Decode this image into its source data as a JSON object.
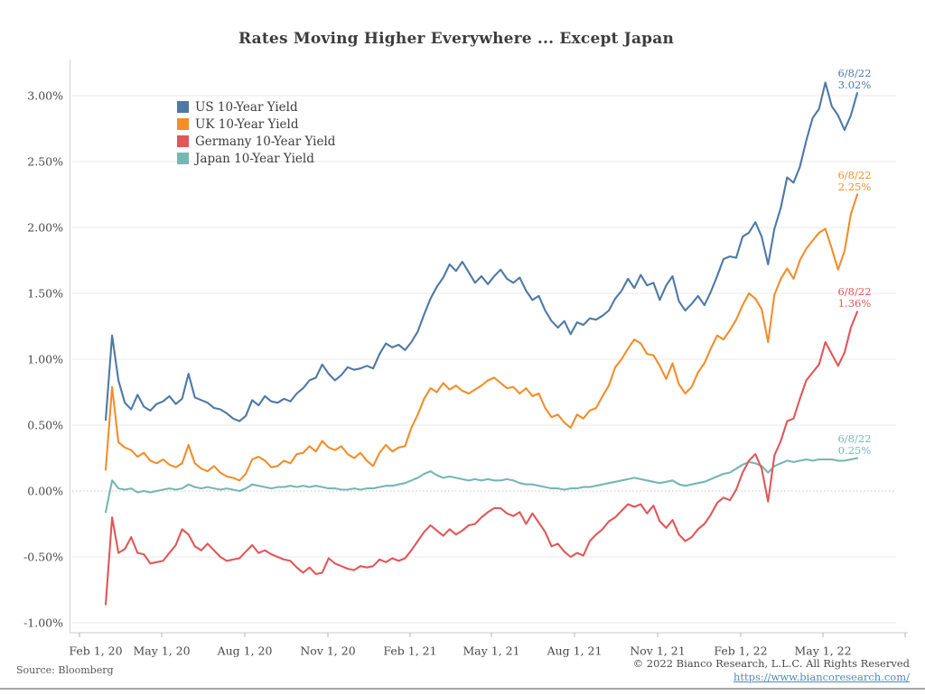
{
  "title": "Rates Moving Higher Everywhere ... Except Japan",
  "source_note": "Source: Bloomberg",
  "footer": {
    "copyright": "© 2022 Bianco Research, L.L.C. All Rights Reserved",
    "link": "https://www.biancoresearch.com/"
  },
  "chart_data": {
    "type": "line",
    "title": "Rates Moving Higher Everywhere ... Except Japan",
    "x_start": "2020-03-09",
    "x_end": "2022-06-08",
    "frequency": "weekly",
    "grid": "horizontal",
    "legend_position": "top-left-inside",
    "ylim": [
      -1.0,
      3.0
    ],
    "x_ticks": [
      "Feb 1, 20",
      "May 1, 20",
      "Aug 1, 20",
      "Nov 1, 20",
      "Feb 1, 21",
      "May 1, 21",
      "Aug 1, 21",
      "Nov 1, 21",
      "Feb 1, 22",
      "May 1, 22"
    ],
    "y_ticks": [
      {
        "label": "3.00%",
        "value": 3.0
      },
      {
        "label": "2.50%",
        "value": 2.5
      },
      {
        "label": "2.00%",
        "value": 2.0
      },
      {
        "label": "1.50%",
        "value": 1.5
      },
      {
        "label": "1.00%",
        "value": 1.0
      },
      {
        "label": "0.50%",
        "value": 0.5
      },
      {
        "label": "0.00%",
        "value": 0.0
      },
      {
        "label": "-0.50%",
        "value": -0.5
      },
      {
        "label": "-1.00%",
        "value": -1.0
      }
    ],
    "series": [
      {
        "name": "US 10-Year Yield",
        "color": "#4e79a7",
        "end_label": {
          "date": "6/8/22",
          "value": "3.02%"
        },
        "values": [
          0.54,
          1.18,
          0.84,
          0.67,
          0.62,
          0.73,
          0.64,
          0.61,
          0.66,
          0.68,
          0.72,
          0.66,
          0.7,
          0.89,
          0.71,
          0.69,
          0.67,
          0.63,
          0.62,
          0.59,
          0.55,
          0.53,
          0.57,
          0.69,
          0.65,
          0.72,
          0.68,
          0.67,
          0.7,
          0.68,
          0.74,
          0.78,
          0.84,
          0.86,
          0.96,
          0.89,
          0.84,
          0.88,
          0.94,
          0.92,
          0.93,
          0.95,
          0.93,
          1.04,
          1.12,
          1.09,
          1.11,
          1.07,
          1.13,
          1.21,
          1.34,
          1.46,
          1.55,
          1.62,
          1.72,
          1.67,
          1.74,
          1.66,
          1.58,
          1.63,
          1.57,
          1.63,
          1.68,
          1.61,
          1.58,
          1.62,
          1.52,
          1.45,
          1.48,
          1.37,
          1.29,
          1.24,
          1.29,
          1.19,
          1.28,
          1.26,
          1.31,
          1.3,
          1.33,
          1.37,
          1.46,
          1.52,
          1.61,
          1.54,
          1.64,
          1.56,
          1.58,
          1.45,
          1.56,
          1.63,
          1.44,
          1.37,
          1.42,
          1.48,
          1.41,
          1.51,
          1.63,
          1.76,
          1.78,
          1.77,
          1.93,
          1.96,
          2.04,
          1.93,
          1.72,
          1.99,
          2.15,
          2.38,
          2.34,
          2.46,
          2.66,
          2.83,
          2.9,
          3.1,
          2.92,
          2.85,
          2.74,
          2.85,
          3.02
        ]
      },
      {
        "name": "UK 10-Year Yield",
        "color": "#f28e2b",
        "end_label": {
          "date": "6/8/22",
          "value": "2.25%"
        },
        "values": [
          0.16,
          0.79,
          0.37,
          0.33,
          0.31,
          0.26,
          0.29,
          0.23,
          0.21,
          0.24,
          0.2,
          0.18,
          0.21,
          0.35,
          0.21,
          0.17,
          0.15,
          0.19,
          0.14,
          0.11,
          0.1,
          0.08,
          0.13,
          0.24,
          0.26,
          0.23,
          0.18,
          0.19,
          0.23,
          0.21,
          0.28,
          0.29,
          0.34,
          0.3,
          0.38,
          0.33,
          0.31,
          0.34,
          0.28,
          0.25,
          0.29,
          0.23,
          0.19,
          0.29,
          0.35,
          0.3,
          0.33,
          0.34,
          0.48,
          0.58,
          0.7,
          0.78,
          0.75,
          0.82,
          0.77,
          0.8,
          0.76,
          0.74,
          0.77,
          0.8,
          0.84,
          0.86,
          0.82,
          0.78,
          0.79,
          0.74,
          0.78,
          0.72,
          0.74,
          0.63,
          0.56,
          0.58,
          0.52,
          0.48,
          0.58,
          0.55,
          0.61,
          0.63,
          0.72,
          0.8,
          0.94,
          1.0,
          1.08,
          1.15,
          1.12,
          1.04,
          1.03,
          0.95,
          0.85,
          0.97,
          0.81,
          0.74,
          0.79,
          0.9,
          0.97,
          1.08,
          1.18,
          1.15,
          1.22,
          1.3,
          1.41,
          1.5,
          1.46,
          1.38,
          1.13,
          1.49,
          1.61,
          1.69,
          1.61,
          1.75,
          1.84,
          1.9,
          1.96,
          1.99,
          1.84,
          1.68,
          1.82,
          2.1,
          2.25
        ]
      },
      {
        "name": "Germany 10-Year Yield",
        "color": "#e15759",
        "end_label": {
          "date": "6/8/22",
          "value": "1.36%"
        },
        "values": [
          -0.86,
          -0.2,
          -0.47,
          -0.44,
          -0.35,
          -0.47,
          -0.48,
          -0.55,
          -0.54,
          -0.53,
          -0.47,
          -0.41,
          -0.29,
          -0.33,
          -0.42,
          -0.45,
          -0.4,
          -0.45,
          -0.5,
          -0.53,
          -0.52,
          -0.51,
          -0.46,
          -0.41,
          -0.47,
          -0.45,
          -0.48,
          -0.5,
          -0.52,
          -0.53,
          -0.58,
          -0.62,
          -0.58,
          -0.63,
          -0.62,
          -0.51,
          -0.55,
          -0.57,
          -0.59,
          -0.6,
          -0.57,
          -0.58,
          -0.57,
          -0.52,
          -0.54,
          -0.51,
          -0.53,
          -0.51,
          -0.45,
          -0.38,
          -0.31,
          -0.26,
          -0.3,
          -0.34,
          -0.29,
          -0.33,
          -0.3,
          -0.26,
          -0.25,
          -0.2,
          -0.16,
          -0.13,
          -0.13,
          -0.17,
          -0.19,
          -0.16,
          -0.25,
          -0.17,
          -0.24,
          -0.31,
          -0.42,
          -0.4,
          -0.46,
          -0.5,
          -0.47,
          -0.49,
          -0.38,
          -0.33,
          -0.29,
          -0.23,
          -0.2,
          -0.15,
          -0.1,
          -0.12,
          -0.1,
          -0.17,
          -0.11,
          -0.23,
          -0.28,
          -0.22,
          -0.33,
          -0.38,
          -0.35,
          -0.29,
          -0.25,
          -0.18,
          -0.09,
          -0.05,
          -0.07,
          0.01,
          0.14,
          0.23,
          0.28,
          0.17,
          -0.08,
          0.27,
          0.38,
          0.53,
          0.55,
          0.7,
          0.84,
          0.9,
          0.96,
          1.13,
          1.04,
          0.95,
          1.05,
          1.24,
          1.36
        ]
      },
      {
        "name": "Japan 10-Year Yield",
        "color": "#76b7b2",
        "end_label": {
          "date": "6/8/22",
          "value": "0.25%"
        },
        "values": [
          -0.16,
          0.08,
          0.02,
          0.01,
          0.02,
          -0.01,
          0.0,
          -0.01,
          0.0,
          0.01,
          0.02,
          0.01,
          0.02,
          0.05,
          0.03,
          0.02,
          0.03,
          0.02,
          0.01,
          0.02,
          0.01,
          0.0,
          0.02,
          0.05,
          0.04,
          0.03,
          0.02,
          0.03,
          0.03,
          0.04,
          0.03,
          0.04,
          0.03,
          0.04,
          0.03,
          0.02,
          0.02,
          0.01,
          0.01,
          0.02,
          0.01,
          0.02,
          0.02,
          0.03,
          0.04,
          0.04,
          0.05,
          0.06,
          0.08,
          0.1,
          0.13,
          0.15,
          0.12,
          0.1,
          0.11,
          0.1,
          0.09,
          0.08,
          0.09,
          0.08,
          0.09,
          0.08,
          0.08,
          0.09,
          0.08,
          0.06,
          0.05,
          0.05,
          0.04,
          0.03,
          0.02,
          0.02,
          0.01,
          0.02,
          0.02,
          0.03,
          0.03,
          0.04,
          0.05,
          0.06,
          0.07,
          0.08,
          0.09,
          0.1,
          0.09,
          0.08,
          0.07,
          0.06,
          0.07,
          0.08,
          0.05,
          0.04,
          0.05,
          0.06,
          0.07,
          0.09,
          0.11,
          0.13,
          0.14,
          0.17,
          0.2,
          0.22,
          0.21,
          0.19,
          0.14,
          0.19,
          0.21,
          0.23,
          0.22,
          0.23,
          0.24,
          0.23,
          0.24,
          0.24,
          0.24,
          0.23,
          0.23,
          0.24,
          0.25
        ]
      }
    ]
  }
}
